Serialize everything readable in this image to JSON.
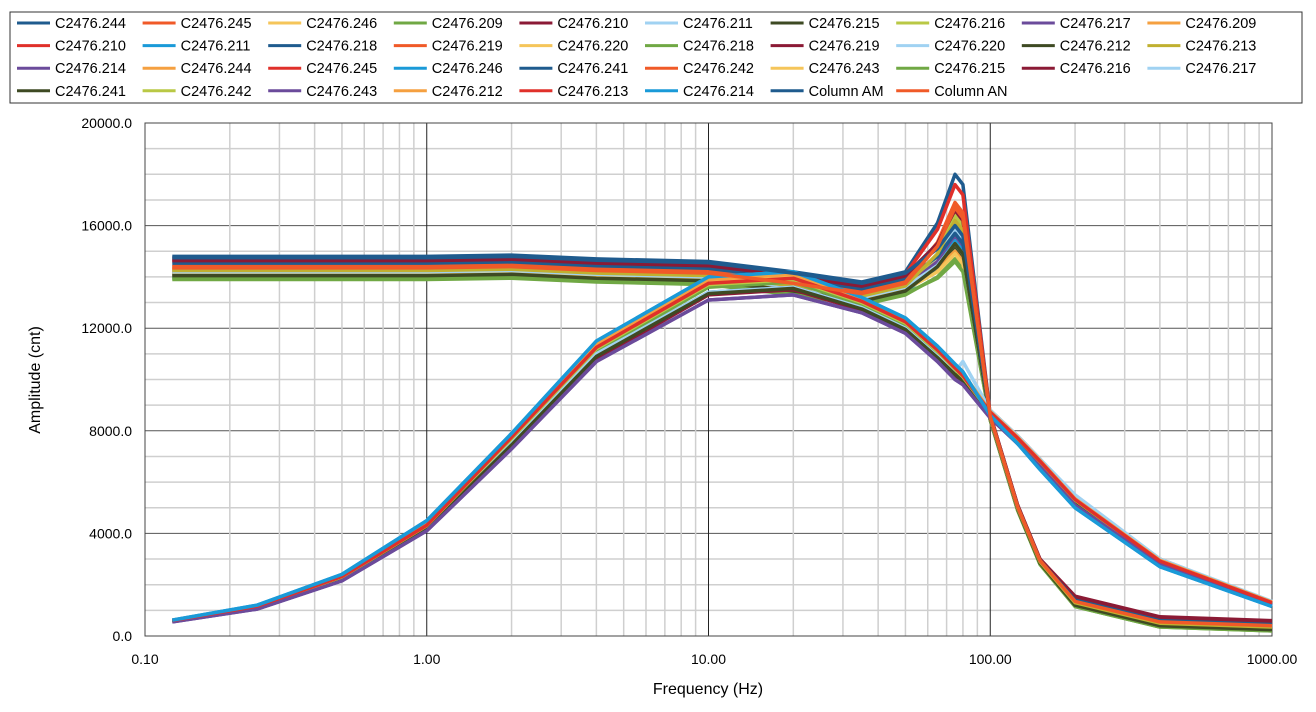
{
  "chart_data": {
    "type": "line",
    "title": "",
    "xlabel": "Frequency  (Hz)",
    "ylabel": "Amplitude (cnt)",
    "xscale": "log",
    "xlim": [
      0.1,
      1000
    ],
    "ylim": [
      0,
      20000
    ],
    "xticks": [
      "0.10",
      "1.00",
      "10.00",
      "100.00",
      "1000.00"
    ],
    "yticks": [
      "0.0",
      "4000.0",
      "8000.0",
      "12000.0",
      "16000.0",
      "20000.0"
    ],
    "grid": true,
    "legend_position": "top",
    "x": [
      0.125,
      0.25,
      0.5,
      1,
      2,
      4,
      10,
      20,
      35,
      50,
      65,
      75,
      80,
      100,
      125,
      150,
      200,
      400,
      1000
    ],
    "series": [
      {
        "name": "C2476.244",
        "color": "#1f5b8e",
        "values": [
          14800,
          14800,
          14800,
          14800,
          14850,
          14700,
          14600,
          14200,
          13800,
          14200,
          16100,
          18000,
          17600,
          8600,
          5100,
          3000,
          1450,
          650,
          500
        ]
      },
      {
        "name": "C2476.245",
        "color": "#f05a28",
        "values": [
          14300,
          14300,
          14300,
          14300,
          14350,
          14200,
          14100,
          13700,
          13300,
          13700,
          15250,
          16800,
          16400,
          8500,
          5000,
          2900,
          1350,
          550,
          400
        ]
      },
      {
        "name": "C2476.246",
        "color": "#f5c55a",
        "values": [
          14200,
          14200,
          14200,
          14200,
          14250,
          14100,
          14000,
          13600,
          13200,
          13600,
          14800,
          16000,
          15600,
          8500,
          5000,
          2900,
          1300,
          500,
          350
        ]
      },
      {
        "name": "C2476.209",
        "color": "#70a844",
        "values": [
          13900,
          13900,
          13900,
          13900,
          13950,
          13800,
          13700,
          13300,
          12900,
          13300,
          14000,
          14700,
          14300,
          8400,
          4900,
          2800,
          1150,
          350,
          200
        ]
      },
      {
        "name": "C2476.210",
        "color": "#8b1a35",
        "values": [
          14600,
          14600,
          14600,
          14600,
          14650,
          14500,
          14400,
          14000,
          13600,
          14000,
          15250,
          16500,
          16100,
          8600,
          5100,
          3000,
          1550,
          750,
          600
        ]
      },
      {
        "name": "C2476.211",
        "color": "#a0d2f2",
        "values": [
          14400,
          14400,
          14400,
          14400,
          14450,
          14300,
          14200,
          13800,
          13400,
          13800,
          14800,
          15800,
          15400,
          8500,
          5000,
          2900,
          1350,
          550,
          400
        ]
      },
      {
        "name": "C2476.215",
        "color": "#3e4a23",
        "values": [
          14100,
          14100,
          14100,
          14100,
          14150,
          14000,
          13900,
          13500,
          13100,
          13500,
          14350,
          15200,
          14800,
          8450,
          4950,
          2850,
          1250,
          450,
          300
        ]
      },
      {
        "name": "C2476.216",
        "color": "#b9c845",
        "values": [
          14000,
          14000,
          14000,
          14000,
          14050,
          13900,
          13800,
          13400,
          13000,
          13400,
          14900,
          16400,
          16000,
          8500,
          5000,
          2900,
          1250,
          450,
          300
        ]
      },
      {
        "name": "C2476.217",
        "color": "#6b4b9b",
        "values": [
          14200,
          14200,
          14200,
          14200,
          14250,
          14100,
          14000,
          13600,
          13200,
          13600,
          14600,
          15600,
          15200,
          8500,
          5000,
          2900,
          1300,
          500,
          350
        ]
      },
      {
        "name": "C2476.209",
        "color": "#f5a040",
        "values": [
          14300,
          14300,
          14300,
          14300,
          14350,
          14200,
          14100,
          13700,
          13300,
          13700,
          14350,
          15000,
          14600,
          8450,
          4950,
          2850,
          1300,
          500,
          350
        ]
      },
      {
        "name": "C2476.210",
        "color": "#e0302a",
        "values": [
          14700,
          14700,
          14700,
          14700,
          14750,
          14600,
          14500,
          14100,
          13700,
          14100,
          15850,
          17600,
          17200,
          8600,
          5100,
          3000,
          1400,
          600,
          450
        ]
      },
      {
        "name": "C2476.211",
        "color": "#1a9ad8",
        "values": [
          14000,
          14000,
          14000,
          14000,
          14050,
          13900,
          13800,
          13400,
          13000,
          13400,
          14400,
          15400,
          15000,
          8450,
          4950,
          2850,
          1250,
          450,
          300
        ]
      },
      {
        "name": "C2476.218",
        "color": "#1f5b8e",
        "values": [
          14500,
          14500,
          14500,
          14500,
          14550,
          14400,
          14300,
          13900,
          13500,
          13900,
          14800,
          15700,
          15300,
          8500,
          5000,
          2900,
          1350,
          550,
          400
        ]
      },
      {
        "name": "C2476.219",
        "color": "#f05a28",
        "values": [
          14400,
          14400,
          14400,
          14400,
          14450,
          14300,
          14200,
          13800,
          13400,
          13800,
          15350,
          16900,
          16500,
          8550,
          5050,
          2950,
          1400,
          600,
          450
        ]
      },
      {
        "name": "C2476.220",
        "color": "#f5c55a",
        "values": [
          14100,
          14100,
          14100,
          14100,
          14150,
          14000,
          13900,
          13500,
          13100,
          13500,
          14200,
          14900,
          14500,
          8400,
          4900,
          2850,
          1250,
          450,
          300
        ]
      },
      {
        "name": "C2476.218",
        "color": "#70a844",
        "values": [
          13950,
          13950,
          13950,
          13950,
          14000,
          13850,
          13750,
          13350,
          12950,
          13350,
          13950,
          14600,
          14200,
          8400,
          4900,
          2800,
          1150,
          350,
          200
        ]
      },
      {
        "name": "C2476.219",
        "color": "#8b1a35",
        "values": [
          14650,
          14650,
          14650,
          14650,
          14700,
          14550,
          14450,
          14050,
          13650,
          14050,
          15300,
          16600,
          16200,
          8600,
          5100,
          3000,
          1500,
          700,
          550
        ]
      },
      {
        "name": "C2476.220",
        "color": "#a0d2f2",
        "values": [
          14200,
          14200,
          14200,
          14200,
          14250,
          14100,
          14000,
          13600,
          13200,
          13600,
          14450,
          15300,
          14900,
          8450,
          4950,
          2900,
          1300,
          500,
          350
        ]
      },
      {
        "name": "C2476.212",
        "color": "#3e4a23",
        "values": [
          14050,
          14050,
          14050,
          14050,
          14100,
          13950,
          13850,
          13450,
          13050,
          13450,
          14400,
          15300,
          14900,
          8450,
          4950,
          2850,
          1200,
          400,
          250
        ]
      },
      {
        "name": "C2476.213",
        "color": "#c0b030",
        "values": [
          14250,
          14250,
          14250,
          14250,
          14300,
          14150,
          14050,
          13650,
          13250,
          13650,
          14900,
          16200,
          15800,
          8500,
          5000,
          2900,
          1300,
          500,
          350
        ]
      },
      {
        "name": "C2476.214",
        "color": "#6b4b9b",
        "values": [
          550,
          1050,
          2150,
          4100,
          7300,
          10700,
          13100,
          13300,
          12600,
          11800,
          10700,
          10000,
          9800,
          8500,
          7500,
          6600,
          5100,
          2800,
          1200
        ]
      },
      {
        "name": "C2476.244",
        "color": "#f5a040",
        "values": [
          600,
          1150,
          2300,
          4300,
          7700,
          11200,
          13700,
          13900,
          13000,
          12200,
          11100,
          10400,
          10100,
          8700,
          7700,
          6800,
          5300,
          2900,
          1300
        ]
      },
      {
        "name": "C2476.245",
        "color": "#e0302a",
        "values": [
          610,
          1170,
          2350,
          4350,
          7800,
          11300,
          13800,
          14000,
          13100,
          12300,
          11200,
          10500,
          10200,
          8800,
          7800,
          6900,
          5400,
          3000,
          1300
        ]
      },
      {
        "name": "C2476.246",
        "color": "#1a9ad8",
        "values": [
          620,
          1200,
          2400,
          4500,
          7900,
          11500,
          14000,
          14200,
          13200,
          12400,
          11300,
          10600,
          10300,
          8600,
          7500,
          6500,
          5000,
          2700,
          1150
        ]
      },
      {
        "name": "C2476.241",
        "color": "#1f5b8e",
        "values": [
          580,
          1100,
          2250,
          4200,
          7500,
          11000,
          13400,
          13600,
          12800,
          12000,
          10900,
          10300,
          10100,
          8600,
          7600,
          6700,
          5200,
          2850,
          1250
        ]
      },
      {
        "name": "C2476.242",
        "color": "#f05a28",
        "values": [
          600,
          1150,
          2300,
          4300,
          7700,
          11200,
          13700,
          13900,
          13000,
          12200,
          11100,
          10400,
          10100,
          8700,
          7700,
          6800,
          5300,
          2900,
          1300
        ]
      },
      {
        "name": "C2476.243",
        "color": "#f5c55a",
        "values": [
          610,
          1170,
          2350,
          4350,
          7800,
          11300,
          13800,
          14000,
          13100,
          12300,
          11200,
          10500,
          10200,
          8800,
          7800,
          6900,
          5400,
          3000,
          1300
        ]
      },
      {
        "name": "C2476.215",
        "color": "#70a844",
        "values": [
          590,
          1120,
          2280,
          4250,
          7600,
          11100,
          13600,
          13800,
          12900,
          12100,
          11000,
          10350,
          10050,
          8650,
          7650,
          6750,
          5250,
          2880,
          1280
        ]
      },
      {
        "name": "C2476.216",
        "color": "#8b1a35",
        "values": [
          560,
          1080,
          2200,
          4150,
          7400,
          10800,
          13300,
          13500,
          12700,
          11900,
          10800,
          10100,
          9900,
          8550,
          7550,
          6650,
          5150,
          2820,
          1220
        ]
      },
      {
        "name": "C2476.217",
        "color": "#a0d2f2",
        "values": [
          580,
          1100,
          2250,
          4200,
          7500,
          11000,
          13400,
          13600,
          12800,
          12000,
          10900,
          10300,
          10700,
          8800,
          7800,
          6900,
          5500,
          3000,
          1350
        ]
      },
      {
        "name": "C2476.241",
        "color": "#3e4a23",
        "values": [
          570,
          1090,
          2220,
          4180,
          7450,
          10900,
          13350,
          13550,
          12750,
          11950,
          10850,
          10200,
          9950,
          8580,
          7580,
          6680,
          5180,
          2840,
          1240
        ]
      },
      {
        "name": "C2476.242",
        "color": "#b9c845",
        "values": [
          600,
          1150,
          2300,
          4300,
          7700,
          11200,
          13700,
          13900,
          13000,
          12200,
          11100,
          10400,
          10100,
          8700,
          7700,
          6800,
          5300,
          2900,
          1300
        ]
      },
      {
        "name": "C2476.243",
        "color": "#6b4b9b",
        "values": [
          550,
          1050,
          2150,
          4100,
          7300,
          10700,
          13100,
          13300,
          12600,
          11800,
          10700,
          10000,
          9800,
          8500,
          7500,
          6600,
          5100,
          2800,
          1200
        ]
      },
      {
        "name": "C2476.212",
        "color": "#f5a040",
        "values": [
          615,
          1180,
          2370,
          4400,
          7850,
          11400,
          13900,
          14100,
          13150,
          12350,
          11250,
          10550,
          10250,
          8750,
          7750,
          6850,
          5350,
          2950,
          1320
        ]
      },
      {
        "name": "C2476.213",
        "color": "#e0302a",
        "values": [
          605,
          1160,
          2320,
          4320,
          7750,
          11250,
          13750,
          13950,
          13050,
          12250,
          11150,
          10450,
          10150,
          8720,
          7720,
          6820,
          5320,
          2920,
          1300
        ]
      },
      {
        "name": "C2476.214",
        "color": "#1a9ad8",
        "values": [
          620,
          1200,
          2400,
          4500,
          7900,
          11500,
          14000,
          14200,
          13200,
          12400,
          11300,
          10600,
          10300,
          8600,
          7500,
          6500,
          5000,
          2700,
          1150
        ]
      },
      {
        "name": "Column AM",
        "color": "#1f5b8e",
        "values": [
          14750,
          14750,
          14750,
          14750,
          14800,
          14650,
          14550,
          14150,
          13750,
          14150,
          15100,
          16000,
          15600,
          8550,
          5050,
          2950,
          1400,
          600,
          450
        ]
      },
      {
        "name": "Column AN",
        "color": "#f05a28",
        "values": [
          14350,
          14350,
          14350,
          14350,
          14400,
          14250,
          14150,
          13750,
          13350,
          13750,
          15200,
          16700,
          16300,
          8550,
          5050,
          2950,
          1350,
          550,
          400
        ]
      }
    ]
  }
}
